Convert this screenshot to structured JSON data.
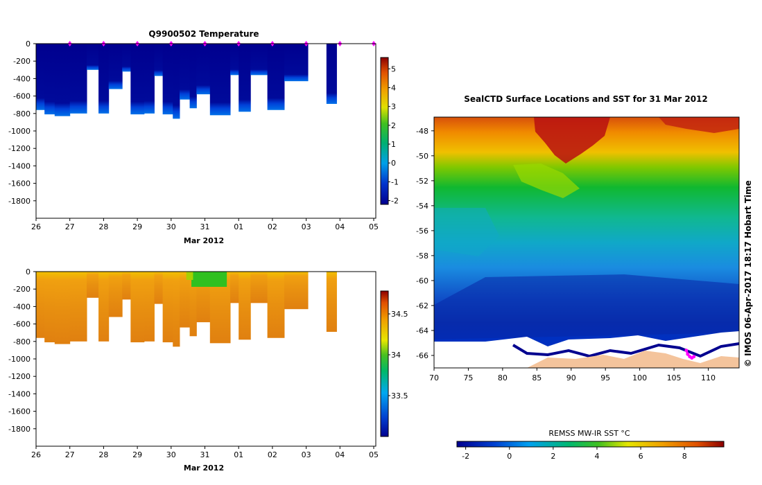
{
  "chart_data": [
    {
      "type": "heatmap",
      "title": "Q9900502  Temperature",
      "xlabel": "Mar 2012",
      "x_ticks": [
        "26",
        "27",
        "28",
        "29",
        "30",
        "31",
        "01",
        "02",
        "03",
        "04",
        "05"
      ],
      "y_ticks": [
        "0",
        "-200",
        "-400",
        "-600",
        "-800",
        "-1000",
        "-1200",
        "-1400",
        "-1600",
        "-1800"
      ],
      "ylim": [
        -2000,
        0
      ],
      "xlim_days": [
        0,
        9.1
      ],
      "colorbar": {
        "ticks": [
          "5",
          "4",
          "3",
          "2",
          "1",
          "0",
          "-1",
          "-2"
        ],
        "range": [
          -2.2,
          5.6
        ]
      },
      "profile_markers_day": [
        1,
        2,
        3,
        4,
        5,
        6,
        7,
        8,
        9,
        10
      ],
      "profiles": [
        {
          "t0": 0.0,
          "t1": 0.25,
          "bottom": -760
        },
        {
          "t0": 0.25,
          "t1": 0.55,
          "bottom": -810
        },
        {
          "t0": 0.55,
          "t1": 1.0,
          "bottom": -830
        },
        {
          "t0": 1.0,
          "t1": 1.5,
          "bottom": -800
        },
        {
          "t0": 1.5,
          "t1": 1.85,
          "bottom": -300
        },
        {
          "t0": 1.85,
          "t1": 2.15,
          "bottom": -800
        },
        {
          "t0": 2.15,
          "t1": 2.55,
          "bottom": -520
        },
        {
          "t0": 2.55,
          "t1": 2.8,
          "bottom": -320
        },
        {
          "t0": 2.8,
          "t1": 3.2,
          "bottom": -810
        },
        {
          "t0": 3.2,
          "t1": 3.5,
          "bottom": -800
        },
        {
          "t0": 3.5,
          "t1": 3.75,
          "bottom": -370
        },
        {
          "t0": 3.75,
          "t1": 4.05,
          "bottom": -810
        },
        {
          "t0": 4.05,
          "t1": 4.25,
          "bottom": -860
        },
        {
          "t0": 4.25,
          "t1": 4.55,
          "bottom": -640
        },
        {
          "t0": 4.55,
          "t1": 4.75,
          "bottom": -740
        },
        {
          "t0": 4.75,
          "t1": 5.15,
          "bottom": -580
        },
        {
          "t0": 5.15,
          "t1": 5.75,
          "bottom": -820
        },
        {
          "t0": 5.75,
          "t1": 6.0,
          "bottom": -360
        },
        {
          "t0": 6.0,
          "t1": 6.35,
          "bottom": -780
        },
        {
          "t0": 6.35,
          "t1": 6.85,
          "bottom": -360
        },
        {
          "t0": 6.85,
          "t1": 7.35,
          "bottom": -760
        },
        {
          "t0": 7.35,
          "t1": 8.05,
          "bottom": -430
        },
        {
          "t0": 8.6,
          "t1": 8.9,
          "bottom": -690
        }
      ]
    },
    {
      "type": "heatmap",
      "title": "",
      "xlabel": "Mar 2012",
      "x_ticks": [
        "26",
        "27",
        "28",
        "29",
        "30",
        "31",
        "01",
        "02",
        "03",
        "04",
        "05"
      ],
      "y_ticks": [
        "0",
        "-200",
        "-400",
        "-600",
        "-800",
        "-1000",
        "-1200",
        "-1400",
        "-1600",
        "-1800"
      ],
      "ylim": [
        -2000,
        0
      ],
      "colorbar": {
        "ticks": [
          "34.5",
          "34",
          "33.5"
        ],
        "range": [
          33.0,
          34.78
        ]
      }
    },
    {
      "type": "heatmap",
      "title": "SealCTD Surface Locations and SST for 31 Mar 2012",
      "x_ticks": [
        "70",
        "75",
        "80",
        "85",
        "90",
        "95",
        "100",
        "105",
        "110"
      ],
      "y_ticks": [
        "-48",
        "-50",
        "-52",
        "-54",
        "-56",
        "-58",
        "-60",
        "-62",
        "-64",
        "-66"
      ],
      "xlim": [
        70,
        114.5
      ],
      "ylim": [
        -67,
        -46.9
      ],
      "side_label": "© IMOS 06-Apr-2017 18:17 Hobart Time",
      "track": [
        [
          106.8,
          -65.6
        ],
        [
          107.0,
          -65.9
        ],
        [
          107.3,
          -66.1
        ],
        [
          107.6,
          -66.2
        ],
        [
          107.9,
          -66.1
        ]
      ],
      "colorbar": {
        "title": "REMSS MW-IR SST °C",
        "ticks": [
          "-2",
          "0",
          "2",
          "4",
          "6",
          "8"
        ],
        "range": [
          -2.4,
          9.8
        ]
      }
    }
  ]
}
